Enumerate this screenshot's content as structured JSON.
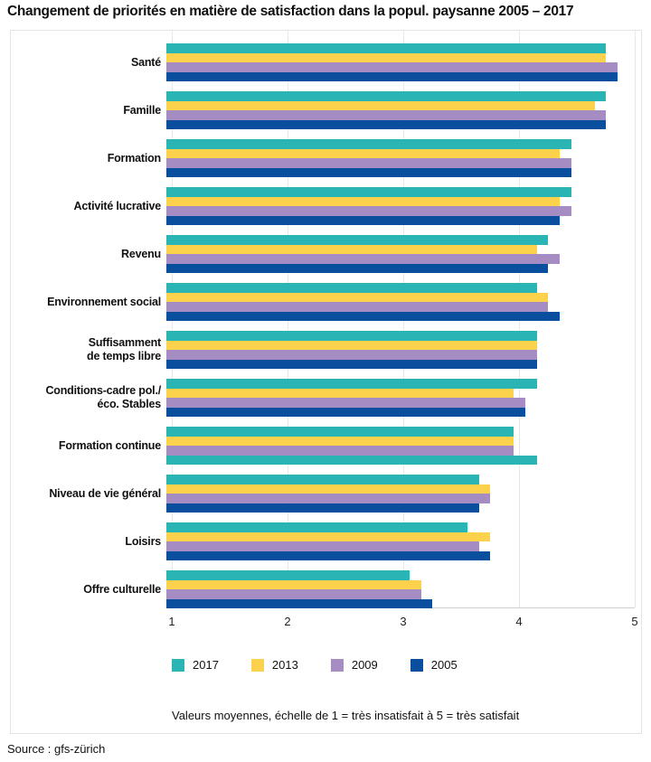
{
  "chart_data": {
    "type": "bar",
    "orientation": "horizontal-grouped",
    "title": "Changement de priorités en matière de satisfaction dans la popul. paysanne 2005 – 2017",
    "xlim": [
      1,
      5
    ],
    "ticks": [
      "1",
      "2",
      "3",
      "4",
      "5"
    ],
    "grid": "vertical-light-gray",
    "legend_position": "bottom",
    "series": [
      {
        "name": "2017",
        "color": "#2bb4b4"
      },
      {
        "name": "2013",
        "color": "#fcd24d"
      },
      {
        "name": "2009",
        "color": "#a58cc2"
      },
      {
        "name": "2005",
        "color": "#0a4f9e"
      }
    ],
    "rows": [
      {
        "label": [
          "Santé"
        ],
        "values": [
          4.8,
          4.8,
          4.9,
          4.9
        ]
      },
      {
        "label": [
          "Famille"
        ],
        "values": [
          4.8,
          4.7,
          4.8,
          4.8
        ]
      },
      {
        "label": [
          "Formation"
        ],
        "values": [
          4.5,
          4.4,
          4.5,
          4.5
        ]
      },
      {
        "label": [
          "Activité lucrative"
        ],
        "values": [
          4.5,
          4.4,
          4.5,
          4.4
        ]
      },
      {
        "label": [
          "Revenu"
        ],
        "values": [
          4.3,
          4.2,
          4.4,
          4.3
        ]
      },
      {
        "label": [
          "Environnement social"
        ],
        "values": [
          4.2,
          4.3,
          4.3,
          4.4
        ]
      },
      {
        "label": [
          "Suffisamment",
          "de temps libre"
        ],
        "values": [
          4.2,
          4.2,
          4.2,
          4.2
        ]
      },
      {
        "label": [
          "Conditions-cadre pol./",
          "éco. Stables"
        ],
        "values": [
          4.2,
          4.0,
          4.1,
          4.1
        ]
      },
      {
        "label": [
          "Formation continue"
        ],
        "values": [
          4.0,
          4.0,
          4.0,
          4.2
        ],
        "override_colors": {
          "3": "#2bb4b4"
        }
      },
      {
        "label": [
          "Niveau de vie général"
        ],
        "values": [
          3.7,
          3.8,
          3.8,
          3.7
        ]
      },
      {
        "label": [
          "Loisirs"
        ],
        "values": [
          3.6,
          3.8,
          3.7,
          3.8
        ]
      },
      {
        "label": [
          "Offre culturelle"
        ],
        "values": [
          3.1,
          3.2,
          3.2,
          3.3
        ]
      }
    ],
    "note": "Valeurs moyennes, échelle de 1 = très insatisfait à 5 = très satisfait",
    "source": "Source : gfs-zürich"
  }
}
